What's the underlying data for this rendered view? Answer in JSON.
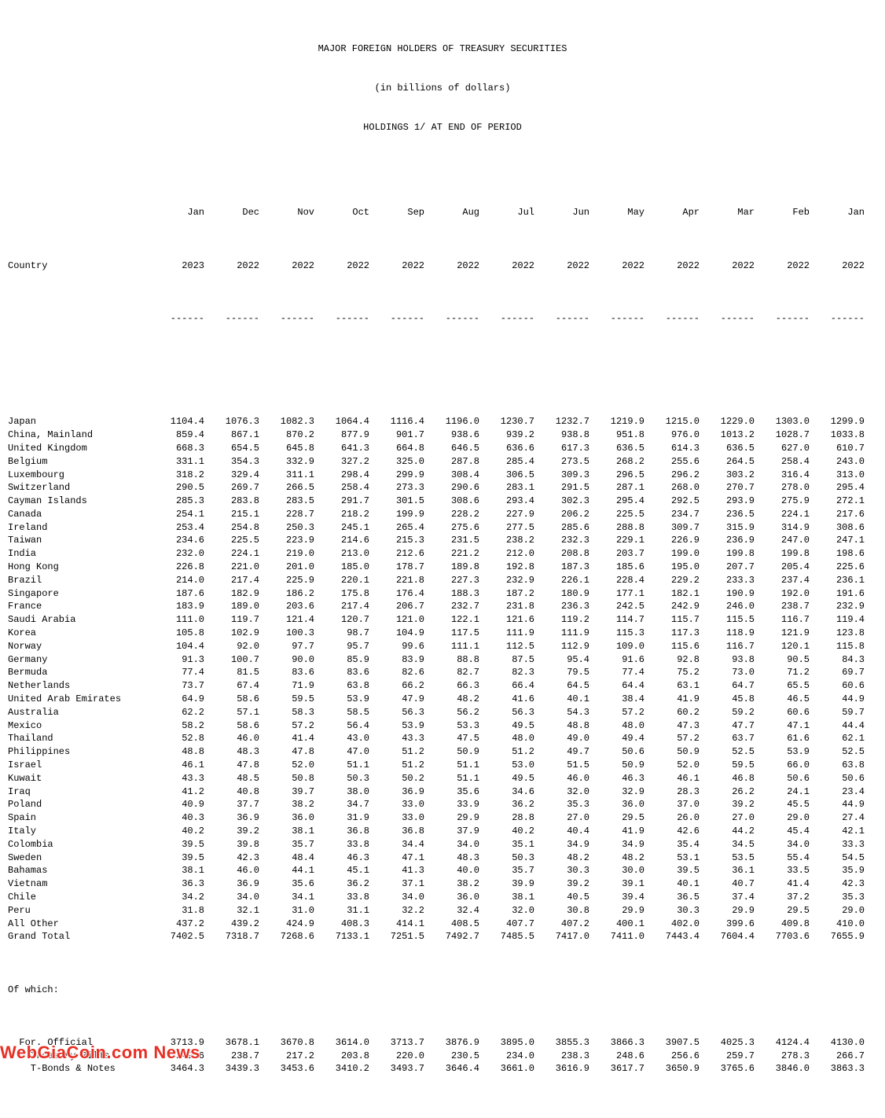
{
  "title_lines": [
    "MAJOR FOREIGN HOLDERS OF TREASURY SECURITIES",
    "(in billions of dollars)",
    "HOLDINGS 1/ AT END OF PERIOD"
  ],
  "country_header": "Country",
  "period_headers_top": [
    "Jan",
    "Dec",
    "Nov",
    "Oct",
    "Sep",
    "Aug",
    "Jul",
    "Jun",
    "May",
    "Apr",
    "Mar",
    "Feb",
    "Jan"
  ],
  "period_headers_bot": [
    "2023",
    "2022",
    "2022",
    "2022",
    "2022",
    "2022",
    "2022",
    "2022",
    "2022",
    "2022",
    "2022",
    "2022",
    "2022"
  ],
  "dash": "------",
  "rows": [
    {
      "c": "Japan",
      "v": [
        "1104.4",
        "1076.3",
        "1082.3",
        "1064.4",
        "1116.4",
        "1196.0",
        "1230.7",
        "1232.7",
        "1219.9",
        "1215.0",
        "1229.0",
        "1303.0",
        "1299.9"
      ]
    },
    {
      "c": "China, Mainland",
      "v": [
        "859.4",
        "867.1",
        "870.2",
        "877.9",
        "901.7",
        "938.6",
        "939.2",
        "938.8",
        "951.8",
        "976.0",
        "1013.2",
        "1028.7",
        "1033.8"
      ]
    },
    {
      "c": "United Kingdom",
      "v": [
        "668.3",
        "654.5",
        "645.8",
        "641.3",
        "664.8",
        "646.5",
        "636.6",
        "617.3",
        "636.5",
        "614.3",
        "636.5",
        "627.0",
        "610.7"
      ]
    },
    {
      "c": "Belgium",
      "v": [
        "331.1",
        "354.3",
        "332.9",
        "327.2",
        "325.0",
        "287.8",
        "285.4",
        "273.5",
        "268.2",
        "255.6",
        "264.5",
        "258.4",
        "243.0"
      ]
    },
    {
      "c": "Luxembourg",
      "v": [
        "318.2",
        "329.4",
        "311.1",
        "298.4",
        "299.9",
        "308.4",
        "306.5",
        "309.3",
        "296.5",
        "296.2",
        "303.2",
        "316.4",
        "313.0"
      ]
    },
    {
      "c": "Switzerland",
      "v": [
        "290.5",
        "269.7",
        "266.5",
        "258.4",
        "273.3",
        "290.6",
        "283.1",
        "291.5",
        "287.1",
        "268.0",
        "270.7",
        "278.0",
        "295.4"
      ]
    },
    {
      "c": "Cayman Islands",
      "v": [
        "285.3",
        "283.8",
        "283.5",
        "291.7",
        "301.5",
        "308.6",
        "293.4",
        "302.3",
        "295.4",
        "292.5",
        "293.9",
        "275.9",
        "272.1"
      ]
    },
    {
      "c": "Canada",
      "v": [
        "254.1",
        "215.1",
        "228.7",
        "218.2",
        "199.9",
        "228.2",
        "227.9",
        "206.2",
        "225.5",
        "234.7",
        "236.5",
        "224.1",
        "217.6"
      ]
    },
    {
      "c": "Ireland",
      "v": [
        "253.4",
        "254.8",
        "250.3",
        "245.1",
        "265.4",
        "275.6",
        "277.5",
        "285.6",
        "288.8",
        "309.7",
        "315.9",
        "314.9",
        "308.6"
      ]
    },
    {
      "c": "Taiwan",
      "v": [
        "234.6",
        "225.5",
        "223.9",
        "214.6",
        "215.3",
        "231.5",
        "238.2",
        "232.3",
        "229.1",
        "226.9",
        "236.9",
        "247.0",
        "247.1"
      ]
    },
    {
      "c": "India",
      "v": [
        "232.0",
        "224.1",
        "219.0",
        "213.0",
        "212.6",
        "221.2",
        "212.0",
        "208.8",
        "203.7",
        "199.0",
        "199.8",
        "199.8",
        "198.6"
      ]
    },
    {
      "c": "Hong Kong",
      "v": [
        "226.8",
        "221.0",
        "201.0",
        "185.0",
        "178.7",
        "189.8",
        "192.8",
        "187.3",
        "185.6",
        "195.0",
        "207.7",
        "205.4",
        "225.6"
      ]
    },
    {
      "c": "Brazil",
      "v": [
        "214.0",
        "217.4",
        "225.9",
        "220.1",
        "221.8",
        "227.3",
        "232.9",
        "226.1",
        "228.4",
        "229.2",
        "233.3",
        "237.4",
        "236.1"
      ]
    },
    {
      "c": "Singapore",
      "v": [
        "187.6",
        "182.9",
        "186.2",
        "175.8",
        "176.4",
        "188.3",
        "187.2",
        "180.9",
        "177.1",
        "182.1",
        "190.9",
        "192.0",
        "191.6"
      ]
    },
    {
      "c": "France",
      "v": [
        "183.9",
        "189.0",
        "203.6",
        "217.4",
        "206.7",
        "232.7",
        "231.8",
        "236.3",
        "242.5",
        "242.9",
        "246.0",
        "238.7",
        "232.9"
      ]
    },
    {
      "c": "Saudi Arabia",
      "v": [
        "111.0",
        "119.7",
        "121.4",
        "120.7",
        "121.0",
        "122.1",
        "121.6",
        "119.2",
        "114.7",
        "115.7",
        "115.5",
        "116.7",
        "119.4"
      ]
    },
    {
      "c": "Korea",
      "v": [
        "105.8",
        "102.9",
        "100.3",
        "98.7",
        "104.9",
        "117.5",
        "111.9",
        "111.9",
        "115.3",
        "117.3",
        "118.9",
        "121.9",
        "123.8"
      ]
    },
    {
      "c": "Norway",
      "v": [
        "104.4",
        "92.0",
        "97.7",
        "95.7",
        "99.6",
        "111.1",
        "112.5",
        "112.9",
        "109.0",
        "115.6",
        "116.7",
        "120.1",
        "115.8"
      ]
    },
    {
      "c": "Germany",
      "v": [
        "91.3",
        "100.7",
        "90.0",
        "85.9",
        "83.9",
        "88.8",
        "87.5",
        "95.4",
        "91.6",
        "92.8",
        "93.8",
        "90.5",
        "84.3"
      ]
    },
    {
      "c": "Bermuda",
      "v": [
        "77.4",
        "81.5",
        "83.6",
        "83.6",
        "82.6",
        "82.7",
        "82.3",
        "79.5",
        "77.4",
        "75.2",
        "73.0",
        "71.2",
        "69.7"
      ]
    },
    {
      "c": "Netherlands",
      "v": [
        "73.7",
        "67.4",
        "71.9",
        "63.8",
        "66.2",
        "66.3",
        "66.4",
        "64.5",
        "64.4",
        "63.1",
        "64.7",
        "65.5",
        "60.6"
      ]
    },
    {
      "c": "United Arab Emirates",
      "v": [
        "64.9",
        "58.6",
        "59.5",
        "53.9",
        "47.9",
        "48.2",
        "41.6",
        "40.1",
        "38.4",
        "41.9",
        "45.8",
        "46.5",
        "44.9"
      ]
    },
    {
      "c": "Australia",
      "v": [
        "62.2",
        "57.1",
        "58.3",
        "58.5",
        "56.3",
        "56.2",
        "56.3",
        "54.3",
        "57.2",
        "60.2",
        "59.2",
        "60.6",
        "59.7"
      ]
    },
    {
      "c": "Mexico",
      "v": [
        "58.2",
        "58.6",
        "57.2",
        "56.4",
        "53.9",
        "53.3",
        "49.5",
        "48.8",
        "48.0",
        "47.3",
        "47.7",
        "47.1",
        "44.4"
      ]
    },
    {
      "c": "Thailand",
      "v": [
        "52.8",
        "46.0",
        "41.4",
        "43.0",
        "43.3",
        "47.5",
        "48.0",
        "49.0",
        "49.4",
        "57.2",
        "63.7",
        "61.6",
        "62.1"
      ]
    },
    {
      "c": "Philippines",
      "v": [
        "48.8",
        "48.3",
        "47.8",
        "47.0",
        "51.2",
        "50.9",
        "51.2",
        "49.7",
        "50.6",
        "50.9",
        "52.5",
        "53.9",
        "52.5"
      ]
    },
    {
      "c": "Israel",
      "v": [
        "46.1",
        "47.8",
        "52.0",
        "51.1",
        "51.2",
        "51.1",
        "53.0",
        "51.5",
        "50.9",
        "52.0",
        "59.5",
        "66.0",
        "63.8"
      ]
    },
    {
      "c": "Kuwait",
      "v": [
        "43.3",
        "48.5",
        "50.8",
        "50.3",
        "50.2",
        "51.1",
        "49.5",
        "46.0",
        "46.3",
        "46.1",
        "46.8",
        "50.6",
        "50.6"
      ]
    },
    {
      "c": "Iraq",
      "v": [
        "41.2",
        "40.8",
        "39.7",
        "38.0",
        "36.9",
        "35.6",
        "34.6",
        "32.0",
        "32.9",
        "28.3",
        "26.2",
        "24.1",
        "23.4"
      ]
    },
    {
      "c": "Poland",
      "v": [
        "40.9",
        "37.7",
        "38.2",
        "34.7",
        "33.0",
        "33.9",
        "36.2",
        "35.3",
        "36.0",
        "37.0",
        "39.2",
        "45.5",
        "44.9"
      ]
    },
    {
      "c": "Spain",
      "v": [
        "40.3",
        "36.9",
        "36.0",
        "31.9",
        "33.0",
        "29.9",
        "28.8",
        "27.0",
        "29.5",
        "26.0",
        "27.0",
        "29.0",
        "27.4"
      ]
    },
    {
      "c": "Italy",
      "v": [
        "40.2",
        "39.2",
        "38.1",
        "36.8",
        "36.8",
        "37.9",
        "40.2",
        "40.4",
        "41.9",
        "42.6",
        "44.2",
        "45.4",
        "42.1"
      ]
    },
    {
      "c": "Colombia",
      "v": [
        "39.5",
        "39.8",
        "35.7",
        "33.8",
        "34.4",
        "34.0",
        "35.1",
        "34.9",
        "34.9",
        "35.4",
        "34.5",
        "34.0",
        "33.3"
      ]
    },
    {
      "c": "Sweden",
      "v": [
        "39.5",
        "42.3",
        "48.4",
        "46.3",
        "47.1",
        "48.3",
        "50.3",
        "48.2",
        "48.2",
        "53.1",
        "53.5",
        "55.4",
        "54.5"
      ]
    },
    {
      "c": "Bahamas",
      "v": [
        "38.1",
        "46.0",
        "44.1",
        "45.1",
        "41.3",
        "40.0",
        "35.7",
        "30.3",
        "30.0",
        "39.5",
        "36.1",
        "33.5",
        "35.9"
      ]
    },
    {
      "c": "Vietnam",
      "v": [
        "36.3",
        "36.9",
        "35.6",
        "36.2",
        "37.1",
        "38.2",
        "39.9",
        "39.2",
        "39.1",
        "40.1",
        "40.7",
        "41.4",
        "42.3"
      ]
    },
    {
      "c": "Chile",
      "v": [
        "34.2",
        "34.0",
        "34.1",
        "33.8",
        "34.0",
        "36.0",
        "38.1",
        "40.5",
        "39.4",
        "36.5",
        "37.4",
        "37.2",
        "35.3"
      ]
    },
    {
      "c": "Peru",
      "v": [
        "31.8",
        "32.1",
        "31.0",
        "31.1",
        "32.2",
        "32.4",
        "32.0",
        "30.8",
        "29.9",
        "30.3",
        "29.9",
        "29.5",
        "29.0"
      ]
    },
    {
      "c": "All Other",
      "v": [
        "437.2",
        "439.2",
        "424.9",
        "408.3",
        "414.1",
        "408.5",
        "407.7",
        "407.2",
        "400.1",
        "402.0",
        "399.6",
        "409.8",
        "410.0"
      ]
    },
    {
      "c": "Grand Total",
      "v": [
        "7402.5",
        "7318.7",
        "7268.6",
        "7133.1",
        "7251.5",
        "7492.7",
        "7485.5",
        "7417.0",
        "7411.0",
        "7443.4",
        "7604.4",
        "7703.6",
        "7655.9"
      ]
    }
  ],
  "of_which_label": "Of which:",
  "sub_rows": [
    {
      "c": "  For. Official",
      "v": [
        "3713.9",
        "3678.1",
        "3670.8",
        "3614.0",
        "3713.7",
        "3876.9",
        "3895.0",
        "3855.3",
        "3866.3",
        "3907.5",
        "4025.3",
        "4124.4",
        "4130.0"
      ]
    },
    {
      "c": "    Treasury Bills",
      "v": [
        "249.6",
        "238.7",
        "217.2",
        "203.8",
        "220.0",
        "230.5",
        "234.0",
        "238.3",
        "248.6",
        "256.6",
        "259.7",
        "278.3",
        "266.7"
      ]
    },
    {
      "c": "    T-Bonds & Notes",
      "v": [
        "3464.3",
        "3439.3",
        "3453.6",
        "3410.2",
        "3493.7",
        "3646.4",
        "3661.0",
        "3616.9",
        "3617.7",
        "3650.9",
        "3765.6",
        "3846.0",
        "3863.3"
      ]
    }
  ],
  "watermark": "WebGiaCoin.com News"
}
